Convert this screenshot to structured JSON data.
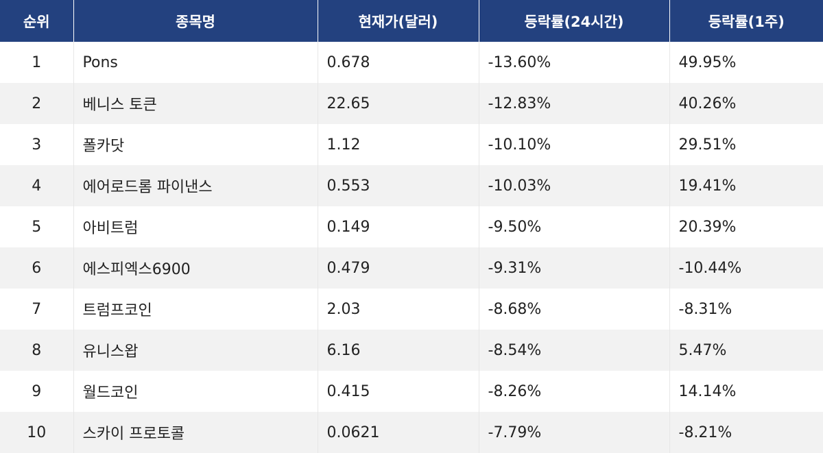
{
  "table": {
    "headers": [
      "순위",
      "종목명",
      "현재가(달러)",
      "등락률(24시간)",
      "등락률(1주)"
    ],
    "rows": [
      {
        "rank": "1",
        "name": "Pons",
        "price": "0.678",
        "change_24h": "-13.60%",
        "change_1w": "49.95%"
      },
      {
        "rank": "2",
        "name": "베니스 토큰",
        "price": "22.65",
        "change_24h": "-12.83%",
        "change_1w": "40.26%"
      },
      {
        "rank": "3",
        "name": "폴카닷",
        "price": "1.12",
        "change_24h": "-10.10%",
        "change_1w": "29.51%"
      },
      {
        "rank": "4",
        "name": "에어로드롬 파이낸스",
        "price": "0.553",
        "change_24h": "-10.03%",
        "change_1w": "19.41%"
      },
      {
        "rank": "5",
        "name": "아비트럼",
        "price": "0.149",
        "change_24h": "-9.50%",
        "change_1w": "20.39%"
      },
      {
        "rank": "6",
        "name": "에스피엑스6900",
        "price": "0.479",
        "change_24h": "-9.31%",
        "change_1w": "-10.44%"
      },
      {
        "rank": "7",
        "name": "트럼프코인",
        "price": "2.03",
        "change_24h": "-8.68%",
        "change_1w": "-8.31%"
      },
      {
        "rank": "8",
        "name": "유니스왑",
        "price": "6.16",
        "change_24h": "-8.54%",
        "change_1w": "5.47%"
      },
      {
        "rank": "9",
        "name": "월드코인",
        "price": "0.415",
        "change_24h": "-8.26%",
        "change_1w": "14.14%"
      },
      {
        "rank": "10",
        "name": "스카이 프로토콜",
        "price": "0.0621",
        "change_24h": "-7.79%",
        "change_1w": "-8.21%"
      }
    ]
  }
}
